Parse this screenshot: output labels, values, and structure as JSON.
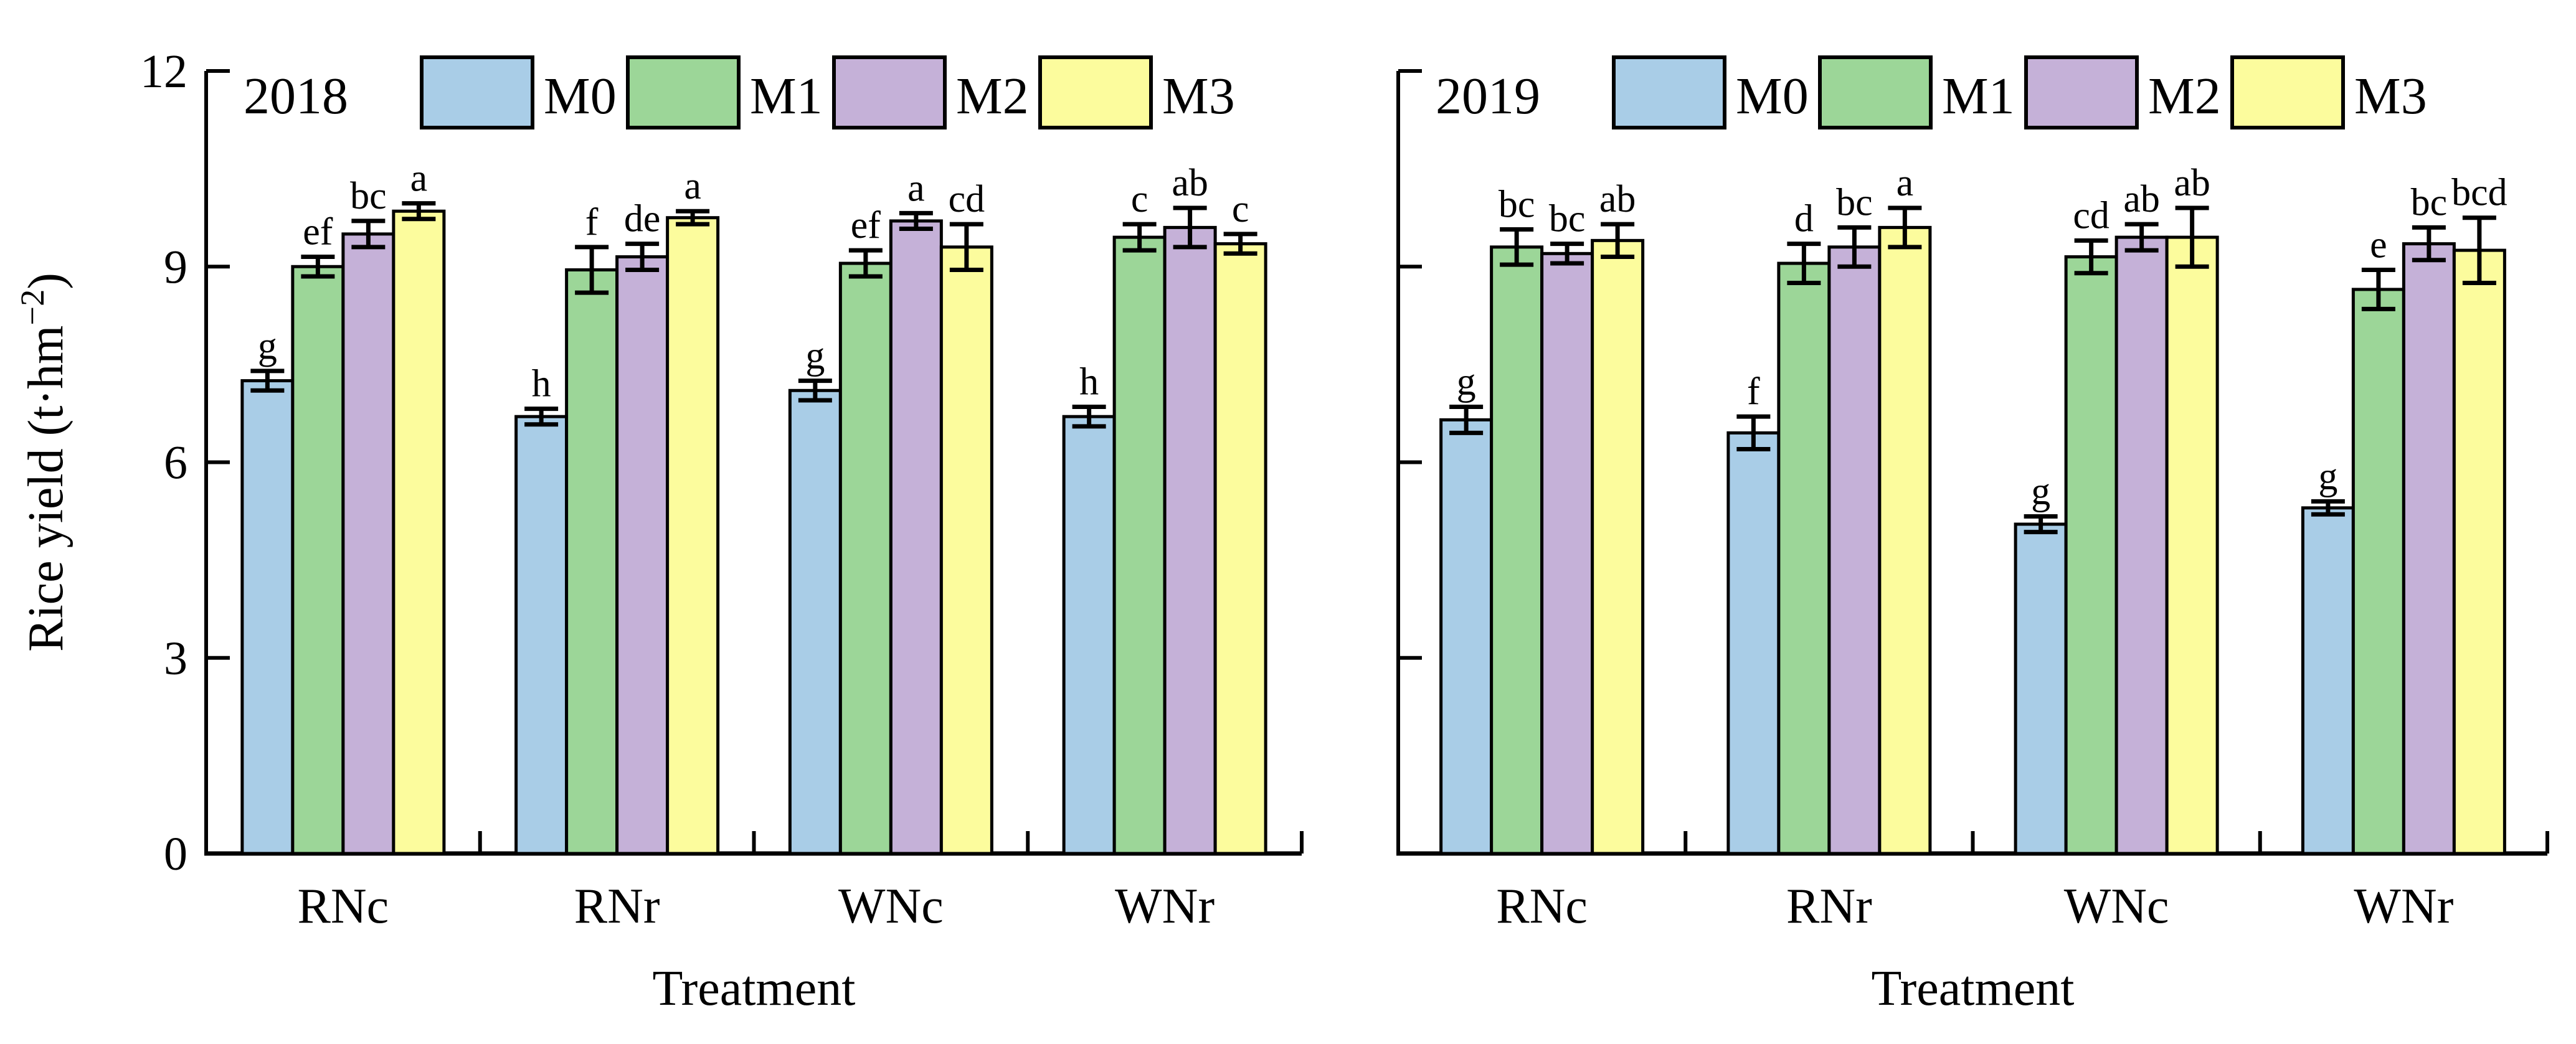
{
  "chart_data": {
    "type": "bar",
    "title": "",
    "ylabel": "Rice yield (t·hm⁻²)",
    "xlabel": "Treatment",
    "ylim": [
      0,
      12
    ],
    "yticks": [
      0,
      3,
      6,
      9,
      12
    ],
    "grid": false,
    "legend_position": "top-inside",
    "categories": [
      "RNc",
      "RNr",
      "WNc",
      "WNr"
    ],
    "series_names": [
      "M0",
      "M1",
      "M2",
      "M3"
    ],
    "colors": {
      "M0": "#A9CDE7",
      "M1": "#9CD698",
      "M2": "#C5B1D8",
      "M3": "#FCFC9D",
      "outline": "#000000"
    },
    "panels": [
      {
        "year": "2018",
        "groups": [
          {
            "category": "RNc",
            "bars": [
              {
                "series": "M0",
                "value": 7.25,
                "err": 0.15,
                "letter": "g"
              },
              {
                "series": "M1",
                "value": 9.0,
                "err": 0.15,
                "letter": "ef"
              },
              {
                "series": "M2",
                "value": 9.5,
                "err": 0.2,
                "letter": "bc"
              },
              {
                "series": "M3",
                "value": 9.85,
                "err": 0.12,
                "letter": "a"
              }
            ]
          },
          {
            "category": "RNr",
            "bars": [
              {
                "series": "M0",
                "value": 6.7,
                "err": 0.12,
                "letter": "h"
              },
              {
                "series": "M1",
                "value": 8.95,
                "err": 0.35,
                "letter": "f"
              },
              {
                "series": "M2",
                "value": 9.15,
                "err": 0.2,
                "letter": "de"
              },
              {
                "series": "M3",
                "value": 9.75,
                "err": 0.1,
                "letter": "a"
              }
            ]
          },
          {
            "category": "WNc",
            "bars": [
              {
                "series": "M0",
                "value": 7.1,
                "err": 0.15,
                "letter": "g"
              },
              {
                "series": "M1",
                "value": 9.05,
                "err": 0.2,
                "letter": "ef"
              },
              {
                "series": "M2",
                "value": 9.7,
                "err": 0.12,
                "letter": "a"
              },
              {
                "series": "M3",
                "value": 9.3,
                "err": 0.35,
                "letter": "cd"
              }
            ]
          },
          {
            "category": "WNr",
            "bars": [
              {
                "series": "M0",
                "value": 6.7,
                "err": 0.15,
                "letter": "h"
              },
              {
                "series": "M1",
                "value": 9.45,
                "err": 0.2,
                "letter": "c"
              },
              {
                "series": "M2",
                "value": 9.6,
                "err": 0.3,
                "letter": "ab"
              },
              {
                "series": "M3",
                "value": 9.35,
                "err": 0.15,
                "letter": "c"
              }
            ]
          }
        ]
      },
      {
        "year": "2019",
        "groups": [
          {
            "category": "RNc",
            "bars": [
              {
                "series": "M0",
                "value": 6.65,
                "err": 0.2,
                "letter": "g"
              },
              {
                "series": "M1",
                "value": 9.3,
                "err": 0.27,
                "letter": "bc"
              },
              {
                "series": "M2",
                "value": 9.2,
                "err": 0.15,
                "letter": "bc"
              },
              {
                "series": "M3",
                "value": 9.4,
                "err": 0.25,
                "letter": "ab"
              }
            ]
          },
          {
            "category": "RNr",
            "bars": [
              {
                "series": "M0",
                "value": 6.45,
                "err": 0.25,
                "letter": "f"
              },
              {
                "series": "M1",
                "value": 9.05,
                "err": 0.3,
                "letter": "d"
              },
              {
                "series": "M2",
                "value": 9.3,
                "err": 0.3,
                "letter": "bc"
              },
              {
                "series": "M3",
                "value": 9.6,
                "err": 0.3,
                "letter": "a"
              }
            ]
          },
          {
            "category": "WNc",
            "bars": [
              {
                "series": "M0",
                "value": 5.05,
                "err": 0.12,
                "letter": "g"
              },
              {
                "series": "M1",
                "value": 9.15,
                "err": 0.25,
                "letter": "cd"
              },
              {
                "series": "M2",
                "value": 9.45,
                "err": 0.2,
                "letter": "ab"
              },
              {
                "series": "M3",
                "value": 9.45,
                "err": 0.45,
                "letter": "ab"
              }
            ]
          },
          {
            "category": "WNr",
            "bars": [
              {
                "series": "M0",
                "value": 5.3,
                "err": 0.1,
                "letter": "g"
              },
              {
                "series": "M1",
                "value": 8.65,
                "err": 0.3,
                "letter": "e"
              },
              {
                "series": "M2",
                "value": 9.35,
                "err": 0.25,
                "letter": "bc"
              },
              {
                "series": "M3",
                "value": 9.25,
                "err": 0.5,
                "letter": "bcd"
              }
            ]
          }
        ]
      }
    ]
  }
}
